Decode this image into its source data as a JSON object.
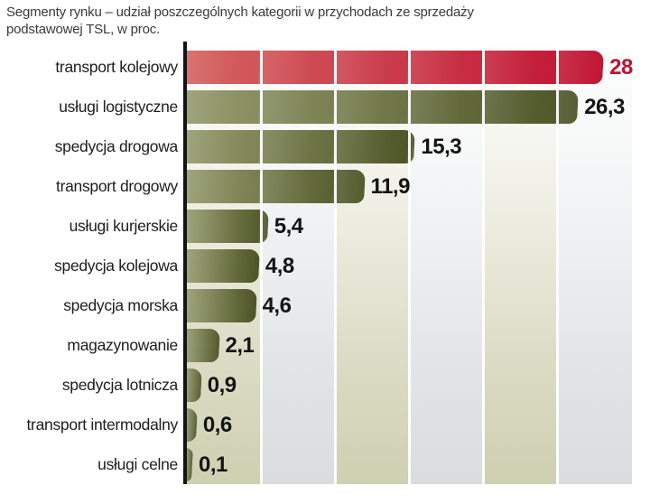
{
  "title": {
    "line1": "Segmenty rynku – udział poszczególnych kategorii w przychodach ze sprzedaży",
    "line2": "podstawowej TSL, w proc."
  },
  "chart_data": {
    "type": "bar",
    "orientation": "horizontal",
    "title": "Segmenty rynku – udział poszczególnych kategorii w przychodach ze sprzedaży podstawowej TSL, w proc.",
    "categories": [
      "transport kolejowy",
      "usługi logistyczne",
      "spedycja drogowa",
      "transport drogowy",
      "usługi kurjerskie",
      "spedycja kolejowa",
      "spedycja morska",
      "magazynowanie",
      "spedycja lotnicza",
      "transport intermodalny",
      "usługi celne"
    ],
    "values": [
      28,
      26.3,
      15.3,
      11.9,
      5.4,
      4.8,
      4.6,
      2.1,
      0.9,
      0.6,
      0.1
    ],
    "value_labels": [
      "28",
      "26,3",
      "15,3",
      "11,9",
      "5,4",
      "4,8",
      "4,6",
      "2,1",
      "0,9",
      "0,6",
      "0,1"
    ],
    "xlim": [
      0,
      30
    ],
    "gridline_step": 5,
    "grid": "vertical-white-lines",
    "legend": "none",
    "highlight_index": 0
  },
  "colors": {
    "highlight_bar_start": "#d46361",
    "highlight_bar_end": "#c11233",
    "bar_start": "#959b6d",
    "bar_end": "#4d5426",
    "highlight_value_label": "#c0122f",
    "value_label": "#141414",
    "category_label": "#1d1d1d",
    "title_text": "#3a3a3a",
    "stripe_beige": "#cfd0b1",
    "stripe_gray": "#d9dde0",
    "axis": "#141414"
  }
}
